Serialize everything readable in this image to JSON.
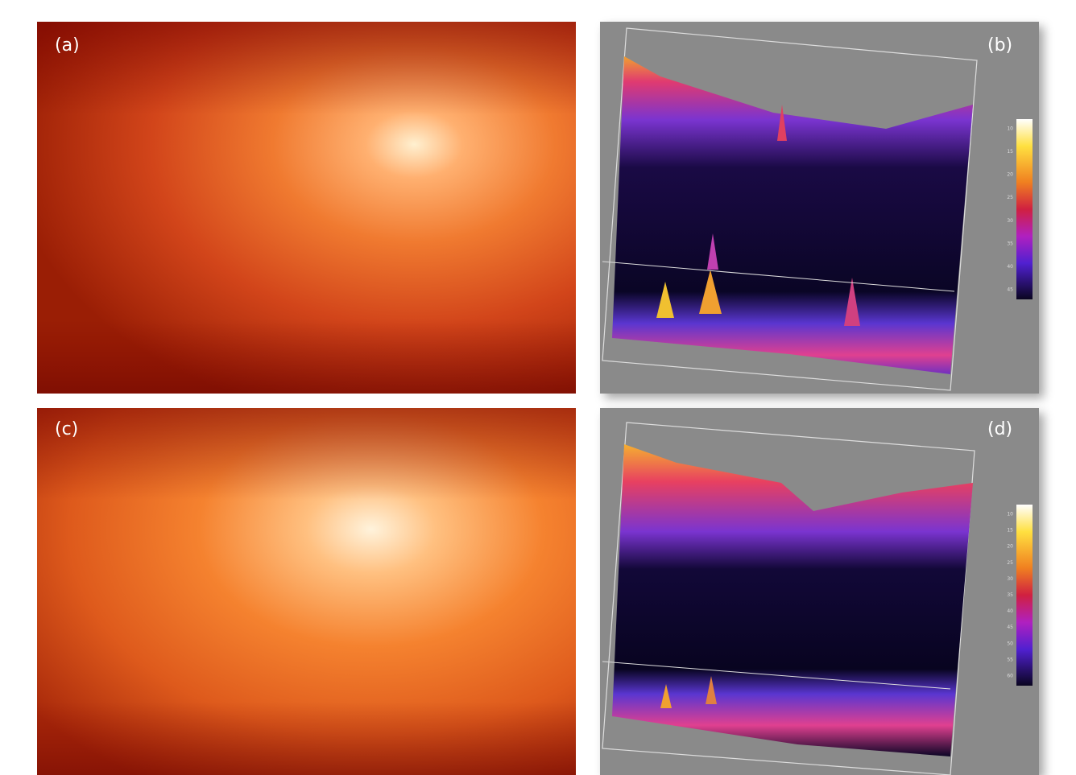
{
  "panels": [
    {
      "label": "(a)"
    },
    {
      "label": "(b)",
      "colorbar_ticks": [
        10,
        15,
        20,
        25,
        30,
        35,
        40,
        45
      ]
    },
    {
      "label": "(c)"
    },
    {
      "label": "(d)",
      "colorbar_ticks": [
        10,
        15,
        20,
        25,
        30,
        35,
        40,
        45,
        50,
        55,
        60
      ]
    }
  ]
}
